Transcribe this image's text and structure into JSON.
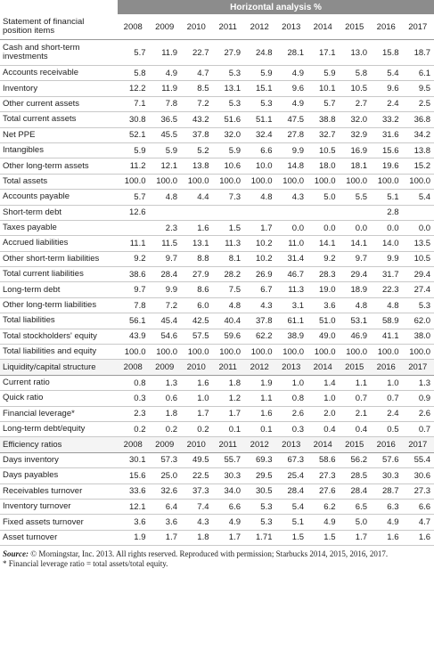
{
  "title": "Horizontal analysis %",
  "sections": [
    {
      "title": "Statement of financial position items",
      "years": [
        "2008",
        "2009",
        "2010",
        "2011",
        "2012",
        "2013",
        "2014",
        "2015",
        "2016",
        "2017"
      ],
      "rows": [
        {
          "label": "Cash and short-term investments",
          "values": [
            "5.7",
            "11.9",
            "22.7",
            "27.9",
            "24.8",
            "28.1",
            "17.1",
            "13.0",
            "15.8",
            "18.7"
          ]
        },
        {
          "label": "Accounts receivable",
          "values": [
            "5.8",
            "4.9",
            "4.7",
            "5.3",
            "5.9",
            "4.9",
            "5.9",
            "5.8",
            "5.4",
            "6.1"
          ]
        },
        {
          "label": "Inventory",
          "values": [
            "12.2",
            "11.9",
            "8.5",
            "13.1",
            "15.1",
            "9.6",
            "10.1",
            "10.5",
            "9.6",
            "9.5"
          ]
        },
        {
          "label": "Other current assets",
          "values": [
            "7.1",
            "7.8",
            "7.2",
            "5.3",
            "5.3",
            "4.9",
            "5.7",
            "2.7",
            "2.4",
            "2.5"
          ]
        },
        {
          "label": "Total current assets",
          "values": [
            "30.8",
            "36.5",
            "43.2",
            "51.6",
            "51.1",
            "47.5",
            "38.8",
            "32.0",
            "33.2",
            "36.8"
          ]
        },
        {
          "label": "Net PPE",
          "values": [
            "52.1",
            "45.5",
            "37.8",
            "32.0",
            "32.4",
            "27.8",
            "32.7",
            "32.9",
            "31.6",
            "34.2"
          ]
        },
        {
          "label": "Intangibles",
          "values": [
            "5.9",
            "5.9",
            "5.2",
            "5.9",
            "6.6",
            "9.9",
            "10.5",
            "16.9",
            "15.6",
            "13.8"
          ]
        },
        {
          "label": "Other long-term assets",
          "values": [
            "11.2",
            "12.1",
            "13.8",
            "10.6",
            "10.0",
            "14.8",
            "18.0",
            "18.1",
            "19.6",
            "15.2"
          ]
        },
        {
          "label": "Total assets",
          "values": [
            "100.0",
            "100.0",
            "100.0",
            "100.0",
            "100.0",
            "100.0",
            "100.0",
            "100.0",
            "100.0",
            "100.0"
          ]
        },
        {
          "label": "Accounts payable",
          "values": [
            "5.7",
            "4.8",
            "4.4",
            "7.3",
            "4.8",
            "4.3",
            "5.0",
            "5.5",
            "5.1",
            "5.4"
          ]
        },
        {
          "label": "Short-term debt",
          "values": [
            "12.6",
            null,
            null,
            null,
            null,
            null,
            null,
            null,
            "2.8",
            null
          ]
        },
        {
          "label": "Taxes payable",
          "values": [
            null,
            "2.3",
            "1.6",
            "1.5",
            "1.7",
            "0.0",
            "0.0",
            "0.0",
            "0.0",
            "0.0"
          ]
        },
        {
          "label": "Accrued liabilities",
          "values": [
            "11.1",
            "11.5",
            "13.1",
            "11.3",
            "10.2",
            "11.0",
            "14.1",
            "14.1",
            "14.0",
            "13.5"
          ]
        },
        {
          "label": "Other short-term liabilities",
          "values": [
            "9.2",
            "9.7",
            "8.8",
            "8.1",
            "10.2",
            "31.4",
            "9.2",
            "9.7",
            "9.9",
            "10.5"
          ]
        },
        {
          "label": "Total current liabilities",
          "values": [
            "38.6",
            "28.4",
            "27.9",
            "28.2",
            "26.9",
            "46.7",
            "28.3",
            "29.4",
            "31.7",
            "29.4"
          ]
        },
        {
          "label": "Long-term debt",
          "values": [
            "9.7",
            "9.9",
            "8.6",
            "7.5",
            "6.7",
            "11.3",
            "19.0",
            "18.9",
            "22.3",
            "27.4"
          ]
        },
        {
          "label": "Other long-term liabilities",
          "values": [
            "7.8",
            "7.2",
            "6.0",
            "4.8",
            "4.3",
            "3.1",
            "3.6",
            "4.8",
            "4.8",
            "5.3"
          ]
        },
        {
          "label": "Total liabilities",
          "values": [
            "56.1",
            "45.4",
            "42.5",
            "40.4",
            "37.8",
            "61.1",
            "51.0",
            "53.1",
            "58.9",
            "62.0"
          ]
        },
        {
          "label": "Total stockholders' equity",
          "values": [
            "43.9",
            "54.6",
            "57.5",
            "59.6",
            "62.2",
            "38.9",
            "49.0",
            "46.9",
            "41.1",
            "38.0"
          ]
        },
        {
          "label": "Total liabilities and equity",
          "values": [
            "100.0",
            "100.0",
            "100.0",
            "100.0",
            "100.0",
            "100.0",
            "100.0",
            "100.0",
            "100.0",
            "100.0"
          ]
        }
      ]
    },
    {
      "title": "Liquidity/capital structure",
      "years": [
        "2008",
        "2009",
        "2010",
        "2011",
        "2012",
        "2013",
        "2014",
        "2015",
        "2016",
        "2017"
      ],
      "rows": [
        {
          "label": "Current ratio",
          "values": [
            "0.8",
            "1.3",
            "1.6",
            "1.8",
            "1.9",
            "1.0",
            "1.4",
            "1.1",
            "1.0",
            "1.3"
          ]
        },
        {
          "label": "Quick ratio",
          "values": [
            "0.3",
            "0.6",
            "1.0",
            "1.2",
            "1.1",
            "0.8",
            "1.0",
            "0.7",
            "0.7",
            "0.9"
          ]
        },
        {
          "label": "Financial leverage*",
          "values": [
            "2.3",
            "1.8",
            "1.7",
            "1.7",
            "1.6",
            "2.6",
            "2.0",
            "2.1",
            "2.4",
            "2.6"
          ]
        },
        {
          "label": "Long-term debt/equity",
          "values": [
            "0.2",
            "0.2",
            "0.2",
            "0.1",
            "0.1",
            "0.3",
            "0.4",
            "0.4",
            "0.5",
            "0.7"
          ]
        }
      ]
    },
    {
      "title": "Efficiency ratios",
      "years": [
        "2008",
        "2009",
        "2010",
        "2011",
        "2012",
        "2013",
        "2014",
        "2015",
        "2016",
        "2017"
      ],
      "rows": [
        {
          "label": "Days inventory",
          "values": [
            "30.1",
            "57.3",
            "49.5",
            "55.7",
            "69.3",
            "67.3",
            "58.6",
            "56.2",
            "57.6",
            "55.4"
          ]
        },
        {
          "label": "Days payables",
          "values": [
            "15.6",
            "25.0",
            "22.5",
            "30.3",
            "29.5",
            "25.4",
            "27.3",
            "28.5",
            "30.3",
            "30.6"
          ]
        },
        {
          "label": "Receivables turnover",
          "values": [
            "33.6",
            "32.6",
            "37.3",
            "34.0",
            "30.5",
            "28.4",
            "27.6",
            "28.4",
            "28.7",
            "27.3"
          ]
        },
        {
          "label": "Inventory turnover",
          "values": [
            "12.1",
            "6.4",
            "7.4",
            "6.6",
            "5.3",
            "5.4",
            "6.2",
            "6.5",
            "6.3",
            "6.6"
          ]
        },
        {
          "label": "Fixed assets turnover",
          "values": [
            "3.6",
            "3.6",
            "4.3",
            "4.9",
            "5.3",
            "5.1",
            "4.9",
            "5.0",
            "4.9",
            "4.7"
          ]
        },
        {
          "label": "Asset turnover",
          "values": [
            "1.9",
            "1.7",
            "1.8",
            "1.7",
            "1.71",
            "1.5",
            "1.5",
            "1.7",
            "1.6",
            "1.6"
          ]
        }
      ]
    }
  ],
  "source": {
    "label": "Source:",
    "text": "© Morningstar, Inc. 2013. All rights reserved. Reproduced with permission; Starbucks 2014, 2015, 2016, 2017."
  },
  "footnote": "* Financial leverage ratio = total assets/total equity."
}
